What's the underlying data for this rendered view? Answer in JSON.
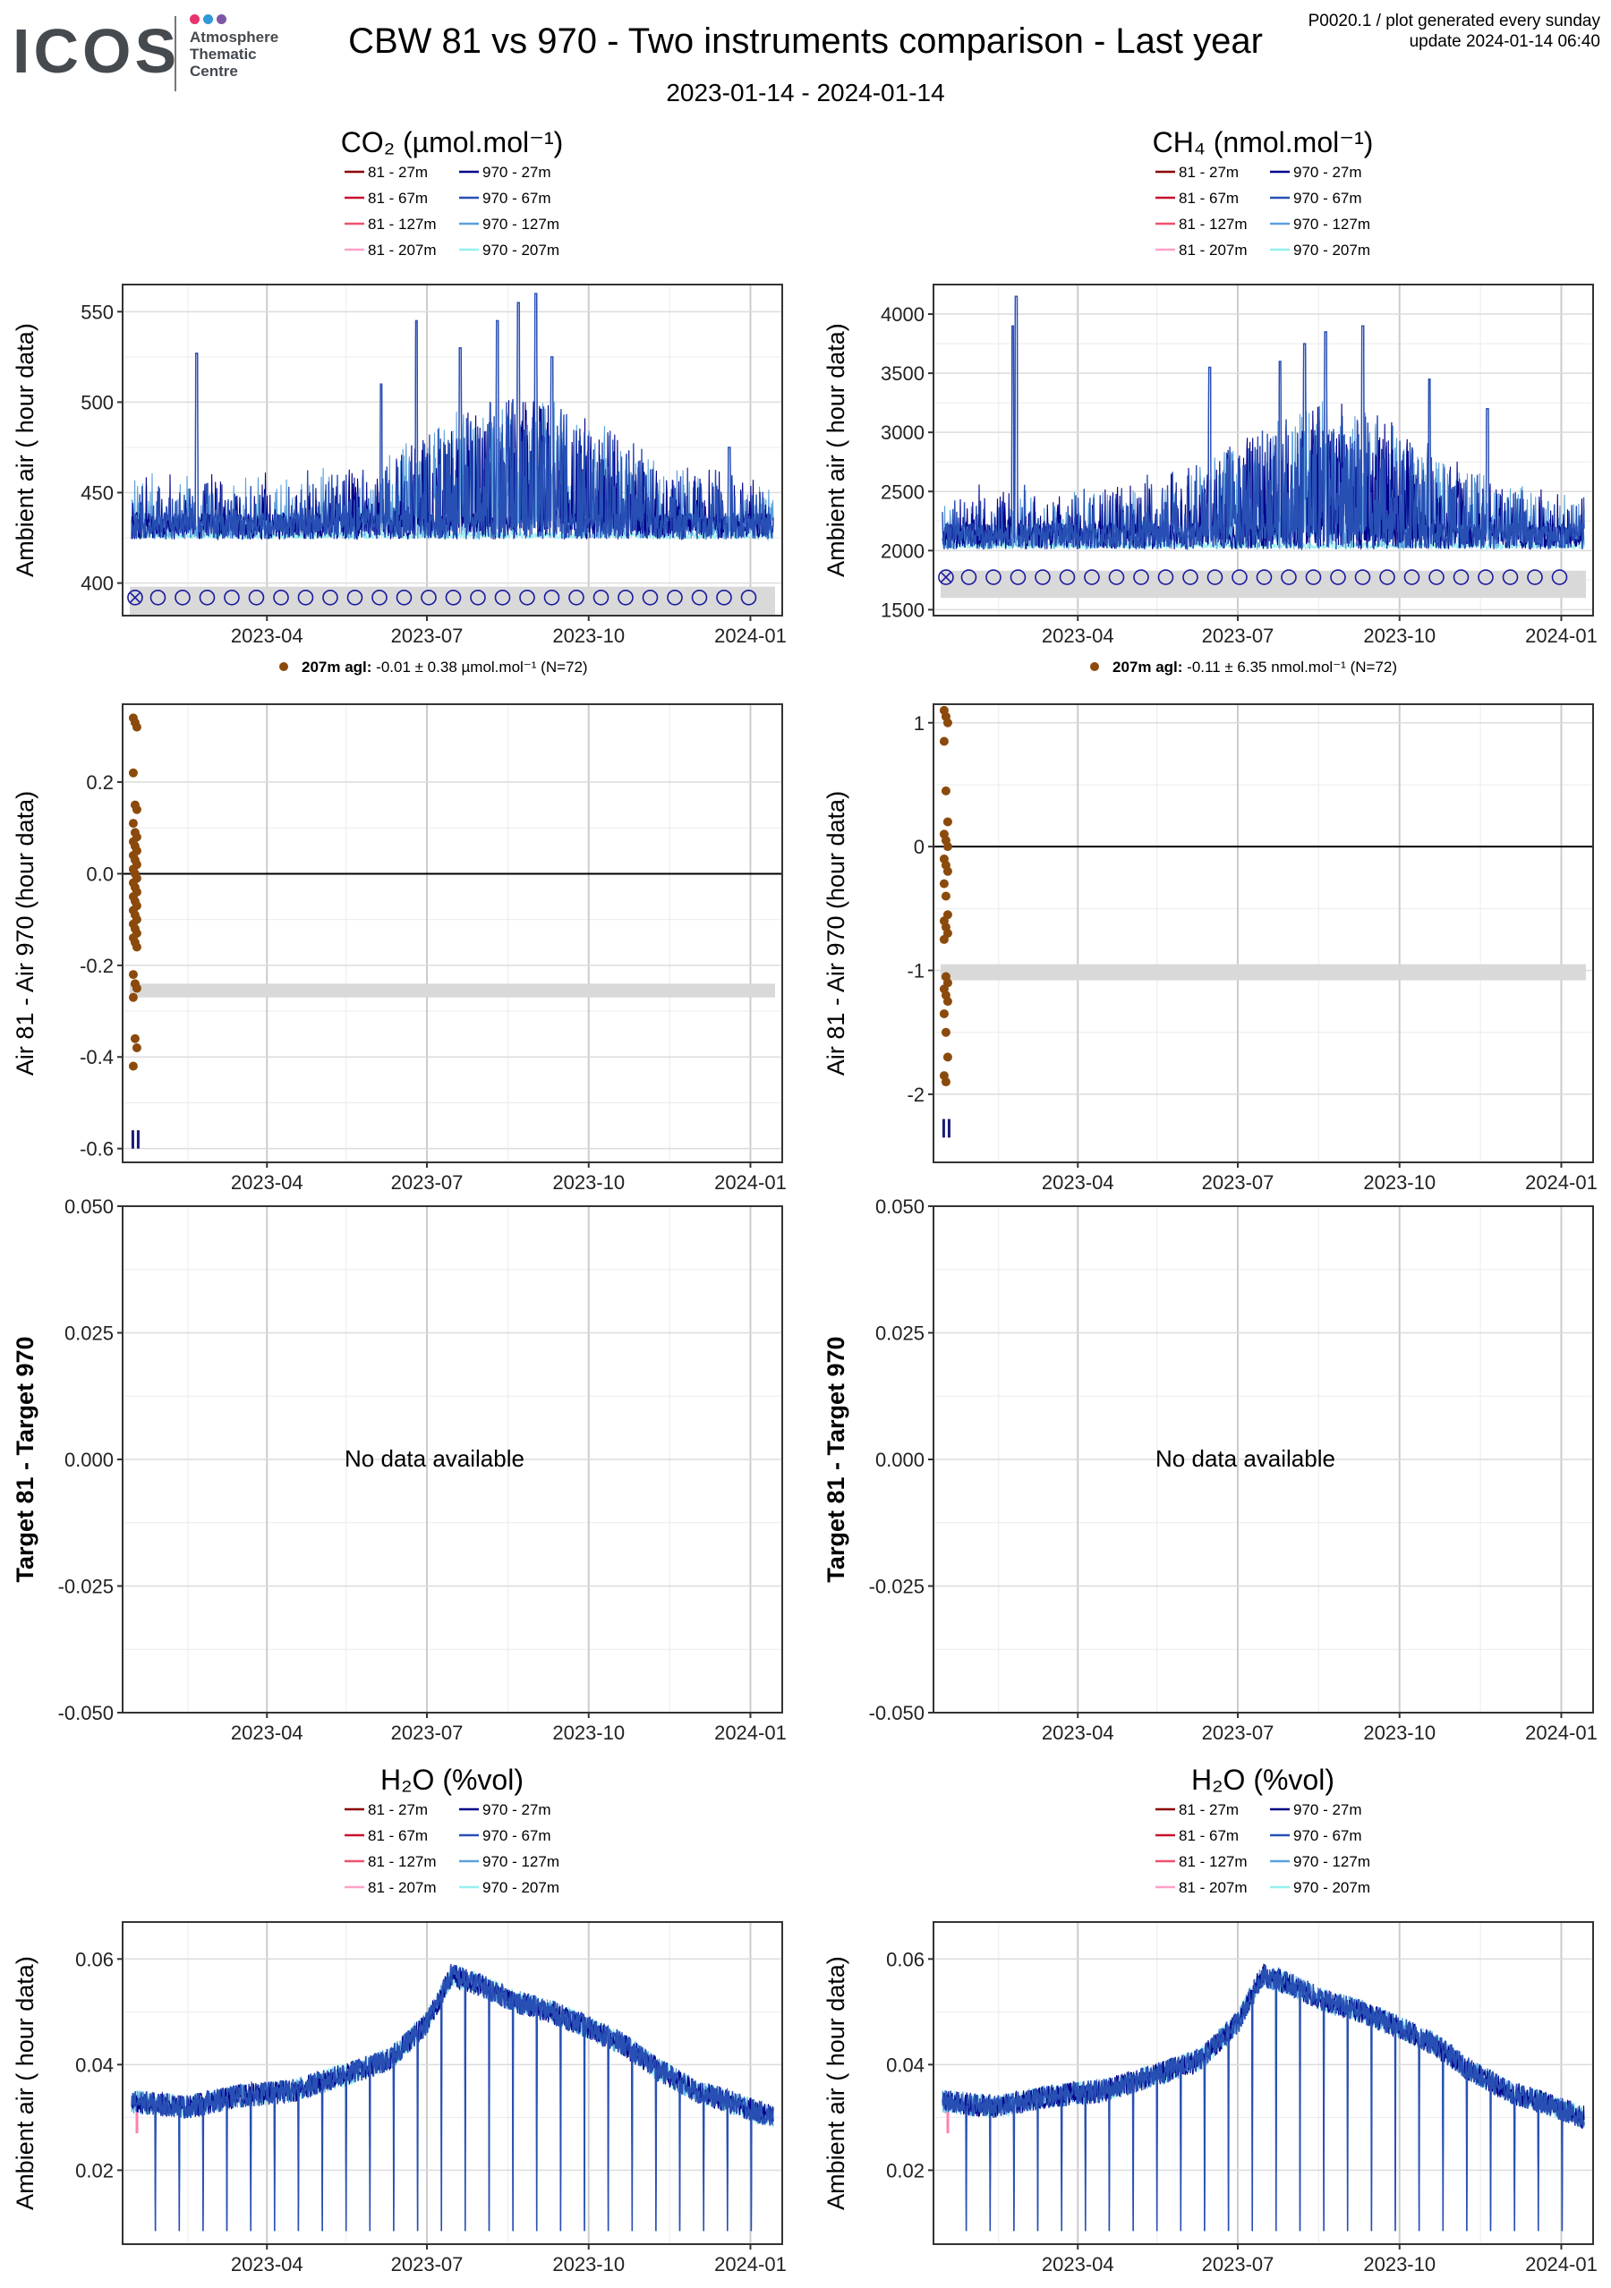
{
  "header": {
    "logo_mark": "ICOS",
    "logo_text": [
      "Atmosphere",
      "Thematic",
      "Centre"
    ],
    "logo_dot_colors": [
      "#e8336b",
      "#2e9ad6",
      "#7d56a4"
    ],
    "title": "CBW 81 vs 970 - Two instruments comparison - Last year",
    "date_range": "2023-01-14 - 2024-01-14",
    "meta_line1": "P0020.1 / plot generated every sunday",
    "meta_line2": "update  2024-01-14 06:40"
  },
  "legend_entries": {
    "left": [
      "81 - 27m",
      "81 - 67m",
      "81 - 127m",
      "81 - 207m"
    ],
    "right": [
      "970 - 27m",
      "970 - 67m",
      "970 - 127m",
      "970 - 207m"
    ],
    "left_colors": [
      "#8b0000",
      "#c8102e",
      "#f0506e",
      "#ffa0c8"
    ],
    "right_colors": [
      "#00008b",
      "#2850b4",
      "#5aa0dc",
      "#96f0f0"
    ]
  },
  "chart_data": [
    {
      "id": "co2-ambient",
      "type": "line",
      "ylabel": "Ambient air ( hour data)",
      "ylim": [
        382,
        565
      ],
      "yticks": [
        400,
        450,
        500,
        550
      ],
      "ytick_labels": [
        "400",
        "450",
        "500",
        "550"
      ],
      "x_range": [
        "2023-01-14",
        "2024-01-14"
      ],
      "xtick_labels": [
        "2023-04",
        "2023-07",
        "2023-10",
        "2024-01"
      ],
      "series_description": "hourly CO2 ambient air, 970 instrument at 27m, 67m, 127m, 207m",
      "baseline": 430,
      "peak_dates": [
        "2023-02-20",
        "2023-06-05",
        "2023-06-25",
        "2023-07-20",
        "2023-08-10",
        "2023-08-22",
        "2023-09-01",
        "2023-09-10",
        "2023-12-20"
      ],
      "peak_values": [
        527,
        510,
        545,
        530,
        545,
        555,
        560,
        525,
        475
      ],
      "markers_y": 392,
      "marker_dates": [
        "2023-01-16",
        "2023-01-29",
        "2023-02-12",
        "2023-02-26",
        "2023-03-12",
        "2023-03-26",
        "2023-04-09",
        "2023-04-23",
        "2023-05-07",
        "2023-05-21",
        "2023-06-04",
        "2023-06-18",
        "2023-07-02",
        "2023-07-16",
        "2023-07-30",
        "2023-08-13",
        "2023-08-27",
        "2023-09-10",
        "2023-09-24",
        "2023-10-08",
        "2023-10-22",
        "2023-11-05",
        "2023-11-19",
        "2023-12-03",
        "2023-12-17",
        "2023-12-31"
      ],
      "shade_range": [
        382,
        398
      ]
    },
    {
      "id": "ch4-ambient",
      "type": "line",
      "ylabel": "Ambient air ( hour data)",
      "ylim": [
        1450,
        4250
      ],
      "yticks": [
        1500,
        2000,
        2500,
        3000,
        3500,
        4000
      ],
      "ytick_labels": [
        "1500",
        "2000",
        "2500",
        "3000",
        "3500",
        "4000"
      ],
      "x_range": [
        "2023-01-14",
        "2024-01-14"
      ],
      "xtick_labels": [
        "2023-04",
        "2023-07",
        "2023-10",
        "2024-01"
      ],
      "series_description": "hourly CH4 ambient air, 970 instrument at 27m, 67m, 127m, 207m",
      "baseline": 2100,
      "peak_dates": [
        "2023-02-23",
        "2023-02-25",
        "2023-06-15",
        "2023-07-25",
        "2023-08-08",
        "2023-08-20",
        "2023-09-10",
        "2023-10-18",
        "2023-11-20"
      ],
      "peak_values": [
        3900,
        4150,
        3550,
        3600,
        3750,
        3850,
        3900,
        3450,
        3200
      ],
      "markers_y": 1775,
      "marker_dates": [
        "2023-01-16",
        "2023-01-29",
        "2023-02-12",
        "2023-02-26",
        "2023-03-12",
        "2023-03-26",
        "2023-04-09",
        "2023-04-23",
        "2023-05-07",
        "2023-05-21",
        "2023-06-04",
        "2023-06-18",
        "2023-07-02",
        "2023-07-16",
        "2023-07-30",
        "2023-08-13",
        "2023-08-27",
        "2023-09-10",
        "2023-09-24",
        "2023-10-08",
        "2023-10-22",
        "2023-11-05",
        "2023-11-19",
        "2023-12-03",
        "2023-12-17",
        "2023-12-31"
      ],
      "shade_range": [
        1600,
        1830
      ]
    },
    {
      "id": "co2-diff",
      "type": "scatter",
      "ylabel": "Air 81 - Air 970 (hour data)",
      "ylim": [
        -0.63,
        0.37
      ],
      "yticks": [
        -0.6,
        -0.4,
        -0.2,
        0.0,
        0.2
      ],
      "ytick_labels": [
        "-0.6",
        "-0.4",
        "-0.2",
        "0.0",
        "0.2"
      ],
      "x_range": [
        "2023-01-14",
        "2024-01-14"
      ],
      "xtick_labels": [
        "2023-04",
        "2023-07",
        "2023-10",
        "2024-01"
      ],
      "points_date": "2023-01-16",
      "points_y": [
        0.34,
        0.33,
        0.32,
        0.22,
        0.15,
        0.14,
        0.11,
        0.09,
        0.08,
        0.07,
        0.06,
        0.05,
        0.04,
        0.03,
        0.02,
        0.01,
        0.0,
        -0.01,
        -0.02,
        -0.03,
        -0.04,
        -0.05,
        -0.06,
        -0.07,
        -0.08,
        -0.09,
        -0.1,
        -0.11,
        -0.12,
        -0.13,
        -0.14,
        -0.15,
        -0.16,
        -0.22,
        -0.24,
        -0.25,
        -0.27,
        -0.36,
        -0.38,
        -0.42
      ],
      "zero_line": 0,
      "shade_range": [
        -0.27,
        -0.24
      ],
      "bar_range": [
        -0.6,
        -0.56
      ],
      "legend_height": "207m agl:",
      "legend_value": "-0.01 ± 0.38 µmol.mol⁻¹",
      "legend_n": "(N=72)"
    },
    {
      "id": "ch4-diff",
      "type": "scatter",
      "ylabel": "Air 81 - Air 970 (hour data)",
      "ylim": [
        -2.55,
        1.15
      ],
      "yticks": [
        -2,
        -1,
        0,
        1
      ],
      "ytick_labels": [
        "-2",
        "-1",
        "0",
        "1"
      ],
      "x_range": [
        "2023-01-14",
        "2024-01-14"
      ],
      "xtick_labels": [
        "2023-04",
        "2023-07",
        "2023-10",
        "2024-01"
      ],
      "points_date": "2023-01-16",
      "points_y": [
        1.1,
        1.05,
        1.0,
        0.85,
        0.45,
        0.2,
        0.1,
        0.05,
        0.0,
        -0.1,
        -0.15,
        -0.2,
        -0.3,
        -0.4,
        -0.55,
        -0.6,
        -0.65,
        -0.7,
        -0.75,
        -1.05,
        -1.1,
        -1.15,
        -1.2,
        -1.25,
        -1.35,
        -1.5,
        -1.7,
        -1.85,
        -1.9
      ],
      "zero_line": 0,
      "shade_range": [
        -1.08,
        -0.95
      ],
      "bar_range": [
        -2.35,
        -2.2
      ],
      "legend_height": "207m agl:",
      "legend_value": "-0.11 ± 6.35 nmol.mol⁻¹",
      "legend_n": "(N=72)"
    },
    {
      "id": "co2-target",
      "type": "line",
      "ylabel": "Target 81 - Target 970",
      "ylim": [
        -0.05,
        0.05
      ],
      "yticks": [
        -0.05,
        -0.025,
        0.0,
        0.025,
        0.05
      ],
      "ytick_labels": [
        "-0.050",
        "-0.025",
        "0.000",
        "0.025",
        "0.050"
      ],
      "x_range": [
        "2023-01-14",
        "2024-01-14"
      ],
      "xtick_labels": [
        "2023-04",
        "2023-07",
        "2023-10",
        "2024-01"
      ],
      "message": "No data available"
    },
    {
      "id": "ch4-target",
      "type": "line",
      "ylabel": "Target 81 - Target 970",
      "ylim": [
        -0.05,
        0.05
      ],
      "yticks": [
        -0.05,
        -0.025,
        0.0,
        0.025,
        0.05
      ],
      "ytick_labels": [
        "-0.050",
        "-0.025",
        "0.000",
        "0.025",
        "0.050"
      ],
      "x_range": [
        "2023-01-14",
        "2024-01-14"
      ],
      "xtick_labels": [
        "2023-04",
        "2023-07",
        "2023-10",
        "2024-01"
      ],
      "message": "No data available"
    },
    {
      "id": "h2o-ambient-left",
      "type": "line",
      "ylabel": "Ambient air ( hour data)",
      "ylim": [
        0.006,
        0.067
      ],
      "yticks": [
        0.02,
        0.04,
        0.06
      ],
      "ytick_labels": [
        "0.02",
        "0.04",
        "0.06"
      ],
      "x_range": [
        "2023-01-14",
        "2024-01-14"
      ],
      "xtick_labels": [
        "2023-04",
        "2023-07",
        "2023-10",
        "2024-01"
      ],
      "profile_dates": [
        "2023-01-14",
        "2023-02-15",
        "2023-03-15",
        "2023-04-15",
        "2023-05-15",
        "2023-06-10",
        "2023-07-01",
        "2023-07-15",
        "2023-08-01",
        "2023-08-20",
        "2023-09-10",
        "2023-10-01",
        "2023-10-20",
        "2023-11-10",
        "2023-12-01",
        "2023-12-20",
        "2024-01-14"
      ],
      "profile_values": [
        0.033,
        0.032,
        0.034,
        0.035,
        0.038,
        0.041,
        0.048,
        0.057,
        0.055,
        0.052,
        0.05,
        0.047,
        0.044,
        0.039,
        0.035,
        0.033,
        0.03
      ],
      "dip_value": 0.0085
    },
    {
      "id": "h2o-ambient-right",
      "type": "line",
      "ylabel": "Ambient air ( hour data)",
      "ylim": [
        0.006,
        0.067
      ],
      "yticks": [
        0.02,
        0.04,
        0.06
      ],
      "ytick_labels": [
        "0.02",
        "0.04",
        "0.06"
      ],
      "x_range": [
        "2023-01-14",
        "2024-01-14"
      ],
      "xtick_labels": [
        "2023-04",
        "2023-07",
        "2023-10",
        "2024-01"
      ],
      "profile_dates": [
        "2023-01-14",
        "2023-02-15",
        "2023-03-15",
        "2023-04-15",
        "2023-05-15",
        "2023-06-10",
        "2023-07-01",
        "2023-07-15",
        "2023-08-01",
        "2023-08-20",
        "2023-09-10",
        "2023-10-01",
        "2023-10-20",
        "2023-11-10",
        "2023-12-01",
        "2023-12-20",
        "2024-01-14"
      ],
      "profile_values": [
        0.033,
        0.032,
        0.034,
        0.035,
        0.038,
        0.041,
        0.048,
        0.057,
        0.055,
        0.052,
        0.05,
        0.047,
        0.044,
        0.039,
        0.035,
        0.033,
        0.03
      ],
      "dip_value": 0.0085
    }
  ],
  "section_titles": {
    "co2": "CO₂ (µmol.mol⁻¹)",
    "ch4": "CH₄ (nmol.mol⁻¹)",
    "h2o_left": "H₂O (%vol)",
    "h2o_right": "H₂O (%vol)"
  }
}
